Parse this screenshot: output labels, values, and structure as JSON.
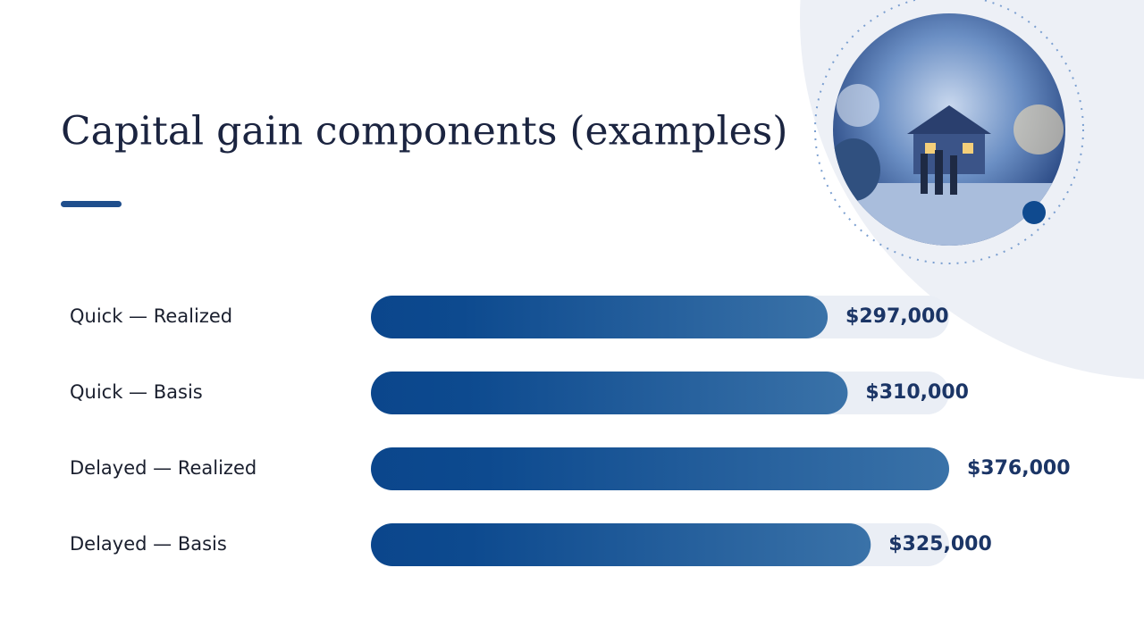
{
  "chart_data": {
    "type": "bar",
    "orientation": "horizontal",
    "title": "Capital gain components (examples)",
    "categories": [
      "Quick — Realized",
      "Quick — Basis",
      "Delayed — Realized",
      "Delayed — Basis"
    ],
    "values": [
      297000,
      310000,
      376000,
      325000
    ],
    "value_labels": [
      "$297,000",
      "$310,000",
      "$376,000",
      "$325,000"
    ],
    "color": "#0d4a8f"
  }
}
